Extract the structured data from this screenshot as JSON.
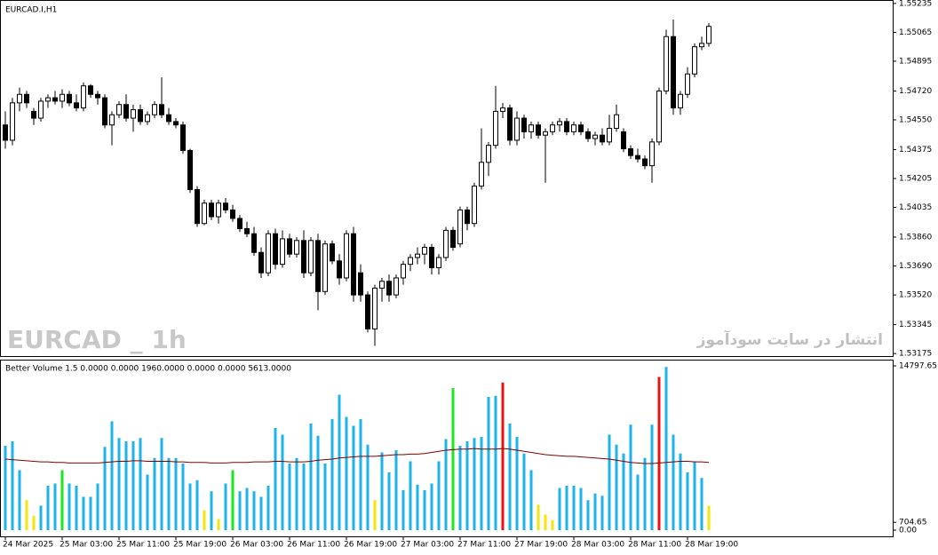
{
  "chart_data": [
    {
      "type": "candlestick",
      "title": "EURCAD.I,H1",
      "watermark": "EURCAD _ 1h",
      "annotation": "انتشار در سایت سودآموز",
      "open": [
        1.5452,
        1.5443,
        1.5465,
        1.547,
        1.546,
        1.5456,
        1.5466,
        1.5468,
        1.5466,
        1.547,
        1.5465,
        1.5462,
        1.5475,
        1.547,
        1.5468,
        1.5452,
        1.5458,
        1.5464,
        1.5456,
        1.5461,
        1.5454,
        1.5458,
        1.5464,
        1.5458,
        1.5454,
        1.5452,
        1.5437,
        1.5414,
        1.5394,
        1.5406,
        1.5398,
        1.5406,
        1.5402,
        1.5397,
        1.5391,
        1.5388,
        1.5377,
        1.5365,
        1.5388,
        1.537,
        1.5385,
        1.5376,
        1.5384,
        1.5365,
        1.5384,
        1.5354,
        1.5382,
        1.5372,
        1.5362,
        1.5388,
        1.5365,
        1.5352,
        1.5332,
        1.5356,
        1.536,
        1.5352,
        1.5362,
        1.537,
        1.5374,
        1.5376,
        1.538,
        1.5368,
        1.5374,
        1.539,
        1.5382,
        1.5402,
        1.5394,
        1.5416,
        1.543,
        1.544,
        1.546,
        1.5462,
        1.5443,
        1.5456,
        1.5448,
        1.5452,
        1.5446,
        1.5448,
        1.5452,
        1.5454,
        1.5448,
        1.5452,
        1.5448,
        1.5444,
        1.5446,
        1.5442,
        1.545,
        1.5448,
        1.5438,
        1.5434,
        1.5432,
        1.5428,
        1.5442,
        1.5472,
        1.5504,
        1.5462,
        1.547,
        1.5482,
        1.5498,
        1.55
      ],
      "high": [
        1.546,
        1.5468,
        1.5474,
        1.5472,
        1.5462,
        1.5468,
        1.547,
        1.5472,
        1.5473,
        1.5472,
        1.547,
        1.5477,
        1.5476,
        1.5472,
        1.547,
        1.546,
        1.5466,
        1.547,
        1.5464,
        1.5464,
        1.546,
        1.5466,
        1.548,
        1.5462,
        1.5456,
        1.5454,
        1.5438,
        1.5416,
        1.5408,
        1.5408,
        1.5408,
        1.5409,
        1.5405,
        1.5399,
        1.5395,
        1.5392,
        1.538,
        1.539,
        1.5391,
        1.539,
        1.5388,
        1.5386,
        1.539,
        1.5386,
        1.5388,
        1.5384,
        1.5384,
        1.5376,
        1.539,
        1.5392,
        1.537,
        1.5354,
        1.5358,
        1.5362,
        1.5364,
        1.5364,
        1.5372,
        1.5376,
        1.538,
        1.5382,
        1.5382,
        1.5376,
        1.5392,
        1.5392,
        1.5404,
        1.5404,
        1.5418,
        1.545,
        1.5442,
        1.5475,
        1.5465,
        1.5464,
        1.546,
        1.5458,
        1.5454,
        1.5454,
        1.545,
        1.5454,
        1.5456,
        1.5456,
        1.5454,
        1.5454,
        1.545,
        1.5448,
        1.545,
        1.5458,
        1.5464,
        1.545,
        1.544,
        1.5438,
        1.5434,
        1.5444,
        1.5474,
        1.5508,
        1.5514,
        1.5472,
        1.5486,
        1.55,
        1.5504,
        1.5512
      ],
      "low": [
        1.5438,
        1.544,
        1.546,
        1.5462,
        1.5452,
        1.5454,
        1.5462,
        1.5464,
        1.5462,
        1.5463,
        1.546,
        1.546,
        1.5468,
        1.5464,
        1.545,
        1.544,
        1.5456,
        1.5454,
        1.5448,
        1.5452,
        1.5452,
        1.5456,
        1.5456,
        1.5452,
        1.545,
        1.5435,
        1.5412,
        1.5392,
        1.5393,
        1.5396,
        1.5394,
        1.54,
        1.5395,
        1.5389,
        1.5386,
        1.5375,
        1.5362,
        1.5363,
        1.5367,
        1.5368,
        1.5374,
        1.5374,
        1.5362,
        1.5363,
        1.5343,
        1.5352,
        1.537,
        1.5358,
        1.536,
        1.5348,
        1.5348,
        1.533,
        1.5322,
        1.5348,
        1.5348,
        1.535,
        1.5358,
        1.5366,
        1.537,
        1.537,
        1.5364,
        1.5364,
        1.5372,
        1.5378,
        1.538,
        1.539,
        1.5392,
        1.5414,
        1.5422,
        1.5438,
        1.5456,
        1.544,
        1.544,
        1.5444,
        1.5444,
        1.5444,
        1.5418,
        1.5446,
        1.5448,
        1.5446,
        1.5446,
        1.5446,
        1.5442,
        1.544,
        1.544,
        1.544,
        1.5448,
        1.5436,
        1.5432,
        1.543,
        1.5426,
        1.5418,
        1.544,
        1.547,
        1.5458,
        1.5458,
        1.5468,
        1.548,
        1.5496,
        1.5498
      ],
      "close": [
        1.5443,
        1.5465,
        1.547,
        1.5465,
        1.5456,
        1.5466,
        1.5468,
        1.5466,
        1.547,
        1.5465,
        1.5462,
        1.5475,
        1.547,
        1.5468,
        1.5452,
        1.5458,
        1.5464,
        1.5456,
        1.5461,
        1.5454,
        1.5458,
        1.5464,
        1.5458,
        1.5454,
        1.5452,
        1.5437,
        1.5414,
        1.5394,
        1.5406,
        1.5398,
        1.5406,
        1.5402,
        1.5397,
        1.5391,
        1.5388,
        1.5377,
        1.5365,
        1.5388,
        1.537,
        1.5385,
        1.5376,
        1.5384,
        1.5365,
        1.5384,
        1.5354,
        1.5382,
        1.5372,
        1.5362,
        1.5388,
        1.5352,
        1.5352,
        1.5332,
        1.5356,
        1.536,
        1.5352,
        1.5362,
        1.537,
        1.5374,
        1.5376,
        1.538,
        1.5368,
        1.5374,
        1.539,
        1.538,
        1.5402,
        1.5394,
        1.5416,
        1.543,
        1.544,
        1.546,
        1.5462,
        1.5443,
        1.5456,
        1.5448,
        1.5452,
        1.5446,
        1.5448,
        1.5452,
        1.5454,
        1.5448,
        1.5452,
        1.5448,
        1.5444,
        1.5446,
        1.5442,
        1.545,
        1.5458,
        1.5438,
        1.5434,
        1.5432,
        1.5428,
        1.5442,
        1.5472,
        1.5504,
        1.5462,
        1.547,
        1.5482,
        1.5498,
        1.55,
        1.551
      ],
      "ylim": [
        1.5316,
        1.5525
      ],
      "yticks": [
        1.55235,
        1.55065,
        1.54895,
        {
          "value": 1.5472,
          "label": "1.54720"
        },
        {
          "value": 1.5455,
          "label": "1.54550"
        },
        1.54375,
        1.54205,
        1.54035,
        {
          "value": 1.5386,
          "label": "1.53860"
        },
        {
          "value": 1.5369,
          "label": "1.53690"
        },
        {
          "value": 1.5352,
          "label": "1.53520"
        },
        1.53345,
        1.53175
      ]
    },
    {
      "type": "bar",
      "title": "Better Volume 1.5 0.0000 0.0000 1960.0000 0.0000 0.0000 5613.0000",
      "categories": [
        "24 Mar 2025",
        null,
        null,
        null,
        null,
        null,
        null,
        null,
        "25 Mar 03:00",
        null,
        null,
        null,
        null,
        null,
        null,
        null,
        "25 Mar 11:00",
        null,
        null,
        null,
        null,
        null,
        null,
        null,
        "25 Mar 19:00",
        null,
        null,
        null,
        null,
        null,
        null,
        null,
        "26 Mar 03:00",
        null,
        null,
        null,
        null,
        null,
        null,
        null,
        "26 Mar 11:00",
        null,
        null,
        null,
        null,
        null,
        null,
        null,
        "26 Mar 19:00",
        null,
        null,
        null,
        null,
        null,
        null,
        null,
        "27 Mar 03:00",
        null,
        null,
        null,
        null,
        null,
        null,
        null,
        "27 Mar 11:00",
        null,
        null,
        null,
        null,
        null,
        null,
        null,
        "27 Mar 19:00",
        null,
        null,
        null,
        null,
        null,
        null,
        null,
        "28 Mar 03:00",
        null,
        null,
        null,
        null,
        null,
        null,
        null,
        "28 Mar 11:00",
        null,
        null,
        null,
        null,
        null,
        null,
        null,
        "28 Mar 19:00",
        null,
        null,
        null
      ],
      "values": [
        7600,
        8000,
        5400,
        2700,
        1300,
        2200,
        4000,
        4200,
        5400,
        4200,
        4000,
        3000,
        3000,
        4200,
        7500,
        9800,
        8300,
        8000,
        8000,
        8300,
        5000,
        6500,
        8300,
        6500,
        6500,
        6000,
        4200,
        4500,
        1800,
        3500,
        1000,
        4200,
        5400,
        3500,
        3800,
        3500,
        3000,
        4000,
        9200,
        8600,
        6000,
        6500,
        6000,
        9600,
        8500,
        6000,
        10000,
        12200,
        10200,
        9400,
        10000,
        7700,
        2700,
        7000,
        5200,
        7200,
        3600,
        6200,
        4100,
        3600,
        4200,
        6200,
        8200,
        12800,
        7600,
        8000,
        8300,
        8400,
        12000,
        12100,
        13300,
        9600,
        8400,
        6900,
        5400,
        2300,
        1400,
        900,
        3800,
        4000,
        4000,
        3800,
        2700,
        3300,
        3100,
        8600,
        7700,
        6900,
        9500,
        5000,
        6500,
        9500,
        13800,
        14700,
        8600,
        6900,
        5200,
        6200,
        4700,
        2200
      ],
      "colors": [
        "#1eb4ea",
        "#1eb4ea",
        "#1eb4ea",
        "#f5e50a",
        "#f5e50a",
        "#1eb4ea",
        "#1eb4ea",
        "#1eb4ea",
        "#1ee61e",
        "#1eb4ea",
        "#1eb4ea",
        "#1eb4ea",
        "#1eb4ea",
        "#1eb4ea",
        "#1eb4ea",
        "#1eb4ea",
        "#1eb4ea",
        "#1eb4ea",
        "#1eb4ea",
        "#1eb4ea",
        "#1eb4ea",
        "#1eb4ea",
        "#1eb4ea",
        "#1eb4ea",
        "#1eb4ea",
        "#1eb4ea",
        "#1eb4ea",
        "#1eb4ea",
        "#f5e50a",
        "#1eb4ea",
        "#f5e50a",
        "#1eb4ea",
        "#1ee61e",
        "#1eb4ea",
        "#1eb4ea",
        "#1eb4ea",
        "#1eb4ea",
        "#1eb4ea",
        "#1eb4ea",
        "#1eb4ea",
        "#1eb4ea",
        "#1eb4ea",
        "#1eb4ea",
        "#1eb4ea",
        "#1eb4ea",
        "#1eb4ea",
        "#1eb4ea",
        "#1eb4ea",
        "#1eb4ea",
        "#1eb4ea",
        "#1eb4ea",
        "#1eb4ea",
        "#f5e50a",
        "#1eb4ea",
        "#1eb4ea",
        "#1eb4ea",
        "#1eb4ea",
        "#1eb4ea",
        "#1eb4ea",
        "#1eb4ea",
        "#1eb4ea",
        "#1eb4ea",
        "#1eb4ea",
        "#1ee61e",
        "#1eb4ea",
        "#1eb4ea",
        "#1eb4ea",
        "#1eb4ea",
        "#1eb4ea",
        "#1eb4ea",
        "#e61414",
        "#1eb4ea",
        "#1eb4ea",
        "#1eb4ea",
        "#1eb4ea",
        "#f5e50a",
        "#f5e50a",
        "#f5e50a",
        "#1eb4ea",
        "#1eb4ea",
        "#1eb4ea",
        "#1eb4ea",
        "#1eb4ea",
        "#1eb4ea",
        "#1eb4ea",
        "#1eb4ea",
        "#1eb4ea",
        "#1eb4ea",
        "#1eb4ea",
        "#1eb4ea",
        "#1eb4ea",
        "#1eb4ea",
        "#e61414",
        "#1eb4ea",
        "#1eb4ea",
        "#1eb4ea",
        "#1eb4ea",
        "#1eb4ea",
        "#1eb4ea",
        "#f5e50a"
      ],
      "ma": {
        "color": "#800000",
        "values": [
          6400,
          6350,
          6300,
          6250,
          6200,
          6150,
          6150,
          6100,
          6100,
          6050,
          6050,
          6050,
          6050,
          6050,
          6100,
          6150,
          6200,
          6200,
          6250,
          6250,
          6200,
          6200,
          6200,
          6200,
          6150,
          6150,
          6100,
          6100,
          6100,
          6050,
          6050,
          6050,
          6100,
          6100,
          6100,
          6150,
          6150,
          6150,
          6200,
          6200,
          6150,
          6150,
          6150,
          6200,
          6300,
          6350,
          6400,
          6500,
          6550,
          6600,
          6650,
          6650,
          6650,
          6700,
          6750,
          6800,
          6800,
          6850,
          6850,
          6900,
          7000,
          7100,
          7200,
          7250,
          7300,
          7300,
          7350,
          7300,
          7300,
          7300,
          7350,
          7300,
          7200,
          7100,
          7000,
          6900,
          6800,
          6750,
          6700,
          6650,
          6650,
          6600,
          6550,
          6500,
          6450,
          6400,
          6300,
          6200,
          6100,
          6050,
          6000,
          6000,
          6050,
          6100,
          6150,
          6200,
          6200,
          6150,
          6150,
          6100
        ]
      },
      "ylim": [
        0,
        14797.65
      ],
      "yticks": [
        {
          "value": 0,
          "label": "0.00"
        },
        704.65,
        14797.65
      ]
    }
  ]
}
